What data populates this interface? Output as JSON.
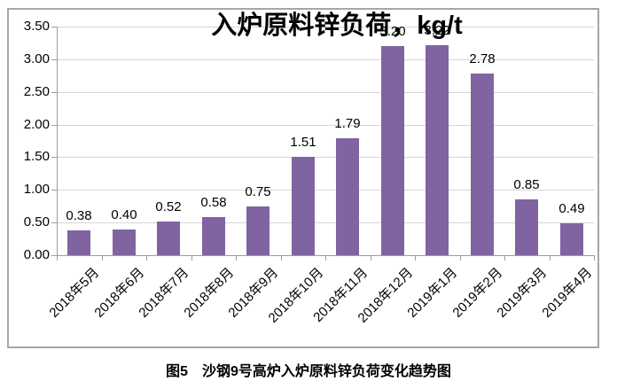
{
  "chart_data": {
    "type": "bar",
    "title": "入炉原料锌负荷，kg/t",
    "categories": [
      "2018年5月",
      "2018年6月",
      "2018年7月",
      "2018年8月",
      "2018年9月",
      "2018年10月",
      "2018年11月",
      "2018年12月",
      "2019年1月",
      "2019年2月",
      "2019年3月",
      "2019年4月"
    ],
    "values": [
      0.38,
      0.4,
      0.52,
      0.58,
      0.75,
      1.51,
      1.79,
      3.2,
      3.22,
      2.78,
      0.85,
      0.49
    ],
    "data_labels": [
      "0.38",
      "0.40",
      "0.52",
      "0.58",
      "0.75",
      "1.51",
      "1.79",
      "3.20",
      "3.22",
      "2.78",
      "0.85",
      "0.49"
    ],
    "xlabel": "",
    "ylabel": "",
    "ylim": [
      0,
      3.5
    ],
    "ytick_step": 0.5,
    "ytick_labels": [
      "0.00",
      "0.50",
      "1.00",
      "1.50",
      "2.00",
      "2.50",
      "3.00",
      "3.50"
    ],
    "grid": true,
    "legend": "none",
    "bar_color": "#8064A2"
  },
  "caption": "图5　沙钢9号高炉入炉原料锌负荷变化趋势图",
  "colors": {
    "bar": "#8064A2",
    "gridline": "#d6d6d6",
    "axis_line": "#9d9d9d",
    "chart_border": "#a6a6a6",
    "text": "#000000",
    "background": "#ffffff"
  }
}
